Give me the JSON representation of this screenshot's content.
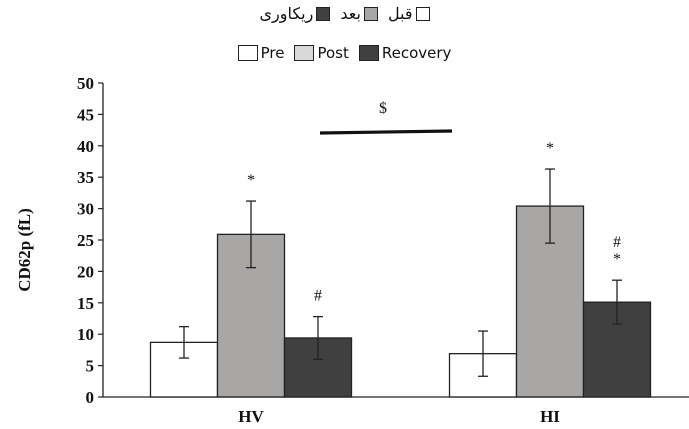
{
  "legend_fa": [
    {
      "label": "قبل",
      "color": "#ffffff"
    },
    {
      "label": "بعد",
      "color": "#a9a6a6"
    },
    {
      "label": "ریکاوری",
      "color": "#404040"
    }
  ],
  "legend_en": [
    {
      "label": "Pre",
      "color": "#ffffff"
    },
    {
      "label": "Post",
      "color": "#d9d9d9"
    },
    {
      "label": "Recovery",
      "color": "#404040"
    }
  ],
  "chart_data": {
    "type": "bar",
    "categories": [
      "HV",
      "HI"
    ],
    "ylabel": "CD62p (fL)",
    "xlabel": "",
    "ylim": [
      0,
      50
    ],
    "yticks": [
      0,
      5,
      10,
      15,
      20,
      25,
      30,
      35,
      40,
      45,
      50
    ],
    "grid": false,
    "series": [
      {
        "name": "Pre",
        "color": "#ffffff",
        "values": [
          8.7,
          6.9
        ],
        "errors": [
          2.5,
          3.6
        ],
        "annotations": [
          "",
          ""
        ]
      },
      {
        "name": "Post",
        "color": "#a9a6a6",
        "values": [
          25.9,
          30.4
        ],
        "errors": [
          5.3,
          5.9
        ],
        "annotations": [
          "*",
          "*"
        ]
      },
      {
        "name": "Recovery",
        "color": "#404040",
        "values": [
          9.4,
          15.1
        ],
        "errors": [
          3.4,
          3.5
        ],
        "annotations": [
          "#",
          "#\n*"
        ]
      }
    ],
    "significance": {
      "label": "$",
      "from_category": 0,
      "to_category": 1
    }
  }
}
